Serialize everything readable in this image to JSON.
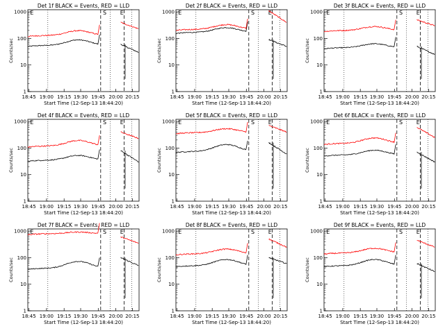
{
  "figure": {
    "ylabel": "Counts/sec",
    "xlabel": "Start Time (12-Sep-13 18:44:20)",
    "xticks": [
      "18:45",
      "19:00",
      "19:15",
      "19:30",
      "19:45",
      "20:00",
      "20:15"
    ],
    "yticks": [
      "1",
      "10",
      "100",
      "1000"
    ],
    "markers": [
      "E",
      "S",
      "E"
    ],
    "colors": {
      "events": "#000000",
      "lld": "#ff0000",
      "axes": "#000000"
    }
  },
  "chart_data": [
    {
      "type": "line",
      "title": "Det 1f BLACK = Events, RED = LLD",
      "xlabel": "Start Time (12-Sep-13 18:44:20)",
      "ylabel": "Counts/sec",
      "ylim": [
        1,
        1200
      ],
      "yscale": "log",
      "series": [
        {
          "name": "Events",
          "base": 55,
          "bump": 1.6,
          "after": [
            60,
            30
          ]
        },
        {
          "name": "LLD",
          "base": 130,
          "bump": 1.5,
          "after": [
            400,
            230
          ]
        }
      ]
    },
    {
      "type": "line",
      "title": "Det 2f BLACK = Events, RED = LLD",
      "xlabel": "Start Time (12-Sep-13 18:44:20)",
      "ylabel": "Counts/sec",
      "ylim": [
        1,
        1200
      ],
      "yscale": "log",
      "series": [
        {
          "name": "Events",
          "base": 170,
          "bump": 1.5,
          "after": [
            90,
            50
          ]
        },
        {
          "name": "LLD",
          "base": 220,
          "bump": 1.5,
          "after": [
            1100,
            400
          ]
        }
      ]
    },
    {
      "type": "line",
      "title": "Det 3f BLACK = Events, RED = LLD",
      "xlabel": "Start Time (12-Sep-13 18:44:20)",
      "ylabel": "Counts/sec",
      "ylim": [
        1,
        1200
      ],
      "yscale": "log",
      "series": [
        {
          "name": "Events",
          "base": 45,
          "bump": 1.4,
          "after": [
            50,
            25
          ]
        },
        {
          "name": "LLD",
          "base": 200,
          "bump": 1.4,
          "after": [
            500,
            300
          ]
        }
      ]
    },
    {
      "type": "line",
      "title": "Det 4f BLACK = Events, RED = LLD",
      "xlabel": "Start Time (12-Sep-13 18:44:20)",
      "ylabel": "Counts/sec",
      "ylim": [
        1,
        1200
      ],
      "yscale": "log",
      "series": [
        {
          "name": "Events",
          "base": 35,
          "bump": 1.5,
          "after": [
            80,
            30
          ]
        },
        {
          "name": "LLD",
          "base": 120,
          "bump": 1.6,
          "after": [
            400,
            230
          ]
        }
      ]
    },
    {
      "type": "line",
      "title": "Det 5f BLACK = Events, RED = LLD",
      "xlabel": "Start Time (12-Sep-13 18:44:20)",
      "ylabel": "Counts/sec",
      "ylim": [
        1,
        1200
      ],
      "yscale": "log",
      "series": [
        {
          "name": "Events",
          "base": 75,
          "bump": 1.8,
          "after": [
            160,
            60
          ]
        },
        {
          "name": "LLD",
          "base": 380,
          "bump": 1.4,
          "after": [
            700,
            400
          ]
        }
      ]
    },
    {
      "type": "line",
      "title": "Det 6f BLACK = Events, RED = LLD",
      "xlabel": "Start Time (12-Sep-13 18:44:20)",
      "ylabel": "Counts/sec",
      "ylim": [
        1,
        1200
      ],
      "yscale": "log",
      "series": [
        {
          "name": "Events",
          "base": 55,
          "bump": 1.5,
          "after": [
            70,
            30
          ]
        },
        {
          "name": "LLD",
          "base": 150,
          "bump": 1.6,
          "after": [
            600,
            250
          ]
        }
      ]
    },
    {
      "type": "line",
      "title": "Det 7f BLACK = Events, RED = LLD",
      "xlabel": "Start Time (12-Sep-13 18:44:20)",
      "ylabel": "Counts/sec",
      "ylim": [
        1,
        1200
      ],
      "yscale": "log",
      "series": [
        {
          "name": "Events",
          "base": 40,
          "bump": 1.8,
          "after": [
            100,
            50
          ]
        },
        {
          "name": "LLD",
          "base": 800,
          "bump": 1.15,
          "after": [
            600,
            350
          ]
        }
      ]
    },
    {
      "type": "line",
      "title": "Det 8f BLACK = Events, RED = LLD",
      "xlabel": "Start Time (12-Sep-13 18:44:20)",
      "ylabel": "Counts/sec",
      "ylim": [
        1,
        1200
      ],
      "yscale": "log",
      "series": [
        {
          "name": "Events",
          "base": 50,
          "bump": 1.7,
          "after": [
            100,
            60
          ]
        },
        {
          "name": "LLD",
          "base": 140,
          "bump": 1.5,
          "after": [
            500,
            250
          ]
        }
      ]
    },
    {
      "type": "line",
      "title": "Det 9f BLACK = Events, RED = LLD",
      "xlabel": "Start Time (12-Sep-13 18:44:20)",
      "ylabel": "Counts/sec",
      "ylim": [
        1,
        1200
      ],
      "yscale": "log",
      "series": [
        {
          "name": "Events",
          "base": 50,
          "bump": 1.7,
          "after": [
            60,
            30
          ]
        },
        {
          "name": "LLD",
          "base": 150,
          "bump": 1.5,
          "after": [
            450,
            250
          ]
        }
      ]
    }
  ]
}
